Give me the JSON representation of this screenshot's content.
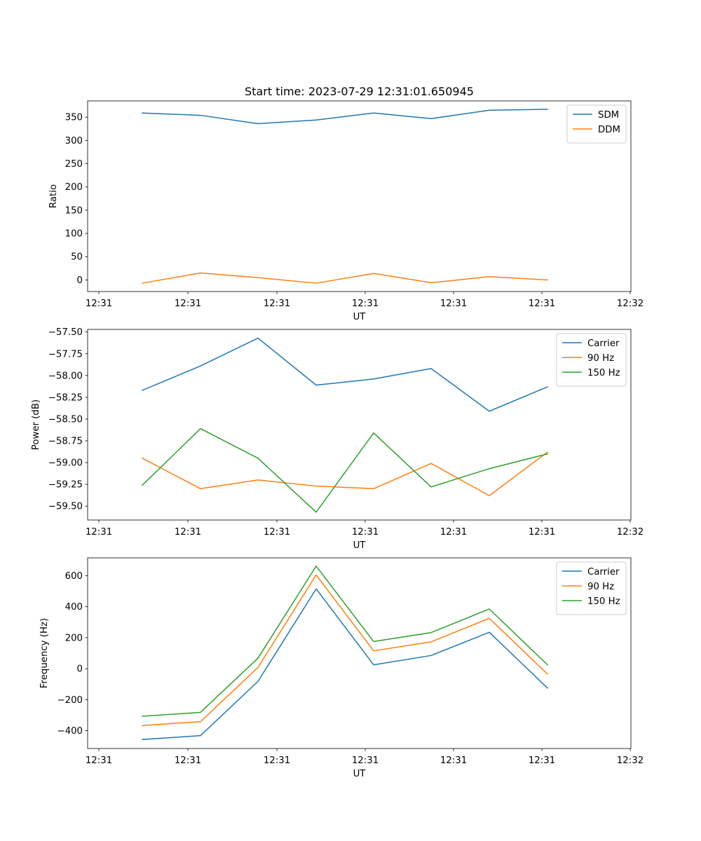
{
  "chart_data": [
    {
      "type": "line",
      "title": "Start time: 2023-07-29 12:31:01.650945",
      "xlabel": "UT",
      "ylabel": "Ratio",
      "x_tick_labels": [
        "12:31",
        "12:31",
        "12:31",
        "12:31",
        "12:31",
        "12:31",
        "12:32"
      ],
      "y_ticks": [
        0,
        50,
        100,
        150,
        200,
        250,
        300,
        350
      ],
      "y_tick_labels": [
        "0",
        "50",
        "100",
        "150",
        "200",
        "250",
        "300",
        "350"
      ],
      "ylim": [
        -25,
        385
      ],
      "legend_position": "top-right",
      "series": [
        {
          "name": "SDM",
          "color": "#1f77b4",
          "values": [
            359,
            354,
            336,
            344,
            359,
            347,
            365,
            367
          ]
        },
        {
          "name": "DDM",
          "color": "#ff7f0e",
          "values": [
            -7,
            15,
            5,
            -7,
            14,
            -6,
            7,
            0
          ]
        }
      ]
    },
    {
      "type": "line",
      "title": "",
      "xlabel": "UT",
      "ylabel": "Power (dB)",
      "x_tick_labels": [
        "12:31",
        "12:31",
        "12:31",
        "12:31",
        "12:31",
        "12:31",
        "12:32"
      ],
      "y_ticks": [
        -57.5,
        -57.75,
        -58.0,
        -58.25,
        -58.5,
        -58.75,
        -59.0,
        -59.25,
        -59.5
      ],
      "y_tick_labels": [
        "−57.50",
        "−57.75",
        "−58.00",
        "−58.25",
        "−58.50",
        "−58.75",
        "−59.00",
        "−59.25",
        "−59.50"
      ],
      "ylim": [
        -59.66,
        -57.47
      ],
      "legend_position": "top-right",
      "series": [
        {
          "name": "Carrier",
          "color": "#1f77b4",
          "values": [
            -58.17,
            -57.89,
            -57.57,
            -58.11,
            -58.04,
            -57.92,
            -58.41,
            -58.13
          ]
        },
        {
          "name": "90 Hz",
          "color": "#ff7f0e",
          "values": [
            -58.95,
            -59.3,
            -59.2,
            -59.27,
            -59.3,
            -59.01,
            -59.38,
            -58.88
          ]
        },
        {
          "name": "150 Hz",
          "color": "#2ca02c",
          "values": [
            -59.26,
            -58.61,
            -58.95,
            -59.57,
            -58.66,
            -59.28,
            -59.07,
            -58.9
          ]
        }
      ]
    },
    {
      "type": "line",
      "title": "",
      "xlabel": "UT",
      "ylabel": "Frequency (Hz)",
      "x_tick_labels": [
        "12:31",
        "12:31",
        "12:31",
        "12:31",
        "12:31",
        "12:31",
        "12:32"
      ],
      "y_ticks": [
        600,
        400,
        200,
        0,
        -200,
        -400
      ],
      "y_tick_labels": [
        "600",
        "400",
        "200",
        "0",
        "−200",
        "−400"
      ],
      "ylim": [
        -515,
        715
      ],
      "legend_position": "top-right",
      "series": [
        {
          "name": "Carrier",
          "color": "#1f77b4",
          "values": [
            -457,
            -432,
            -82,
            515,
            25,
            85,
            235,
            -125
          ]
        },
        {
          "name": "90 Hz",
          "color": "#ff7f0e",
          "values": [
            -367,
            -342,
            8,
            605,
            115,
            173,
            325,
            -35
          ]
        },
        {
          "name": "150 Hz",
          "color": "#2ca02c",
          "values": [
            -307,
            -282,
            68,
            662,
            175,
            233,
            385,
            25
          ]
        }
      ]
    }
  ]
}
